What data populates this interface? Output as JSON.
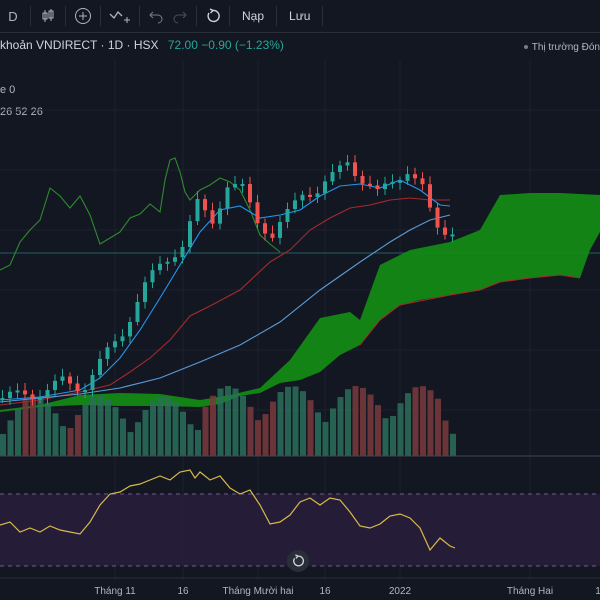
{
  "toolbar": {
    "interval_icon": "interval-letter-icon",
    "interval_label": "D",
    "deposit_label": "Nạp",
    "save_label": "Lưu"
  },
  "legend": {
    "title": "khoản VNDIRECT · 1D · HSX",
    "price": "72.00 −0.90 (−1.23%)",
    "line2": "e 0",
    "line3": "26 52 26"
  },
  "market_status": "Thị trường Đón",
  "xaxis_labels": [
    "Tháng 11",
    "16",
    "Tháng Mười hai",
    "16",
    "2022",
    "Tháng Hai",
    "1"
  ],
  "colors": {
    "background": "#131722",
    "up": "#26a69a",
    "down": "#ef5350",
    "cloud_green": "#138f13",
    "rsi": "#d8b94a",
    "lagging": "#2e8b2e",
    "fast_ma": "#2196f3",
    "base_line": "#a52a2a"
  }
}
